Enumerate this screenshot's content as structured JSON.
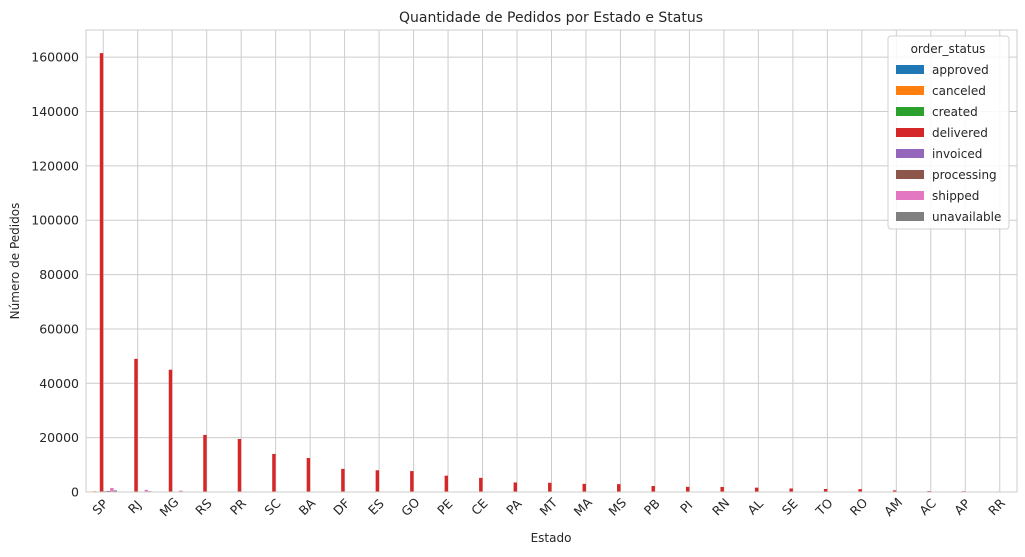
{
  "chart_data": {
    "type": "bar",
    "title": "Quantidade de Pedidos por Estado e Status",
    "xlabel": "Estado",
    "ylabel": "Número de Pedidos",
    "ylim": [
      0,
      170000
    ],
    "yticks": [
      0,
      20000,
      40000,
      60000,
      80000,
      100000,
      120000,
      140000,
      160000
    ],
    "grid": true,
    "legend_position": "top-right",
    "legend_title": "order_status",
    "categories": [
      "SP",
      "RJ",
      "MG",
      "RS",
      "PR",
      "SC",
      "BA",
      "DF",
      "ES",
      "GO",
      "PE",
      "CE",
      "PA",
      "MT",
      "MA",
      "MS",
      "PB",
      "PI",
      "RN",
      "AL",
      "SE",
      "TO",
      "RO",
      "AM",
      "AC",
      "AP",
      "RR"
    ],
    "series": [
      {
        "name": "approved",
        "color": "#1f77b4",
        "values": [
          0,
          0,
          0,
          0,
          0,
          0,
          0,
          0,
          0,
          0,
          0,
          0,
          0,
          0,
          0,
          0,
          0,
          0,
          0,
          0,
          0,
          0,
          0,
          0,
          0,
          0,
          0
        ]
      },
      {
        "name": "canceled",
        "color": "#ff7f0e",
        "values": [
          300,
          100,
          100,
          50,
          40,
          30,
          30,
          20,
          20,
          20,
          20,
          20,
          10,
          10,
          10,
          10,
          10,
          5,
          5,
          5,
          5,
          5,
          5,
          5,
          0,
          0,
          0
        ]
      },
      {
        "name": "created",
        "color": "#2ca02c",
        "values": [
          0,
          0,
          0,
          0,
          0,
          0,
          0,
          0,
          0,
          0,
          0,
          0,
          0,
          0,
          0,
          0,
          0,
          0,
          0,
          0,
          0,
          0,
          0,
          0,
          0,
          0,
          0
        ]
      },
      {
        "name": "delivered",
        "color": "#d62728",
        "values": [
          161500,
          49000,
          45000,
          21000,
          19500,
          14000,
          12500,
          8500,
          8000,
          7700,
          6000,
          5200,
          3500,
          3400,
          3000,
          2900,
          2200,
          1900,
          1850,
          1600,
          1300,
          1100,
          1050,
          600,
          350,
          300,
          200
        ]
      },
      {
        "name": "invoiced",
        "color": "#9467bd",
        "values": [
          300,
          100,
          50,
          30,
          30,
          20,
          20,
          10,
          10,
          10,
          10,
          10,
          5,
          5,
          5,
          5,
          5,
          5,
          5,
          5,
          0,
          0,
          0,
          0,
          0,
          0,
          0
        ]
      },
      {
        "name": "processing",
        "color": "#8c564b",
        "values": [
          400,
          100,
          80,
          40,
          30,
          20,
          20,
          20,
          15,
          15,
          15,
          10,
          10,
          10,
          5,
          5,
          5,
          5,
          5,
          5,
          5,
          0,
          0,
          0,
          0,
          0,
          0
        ]
      },
      {
        "name": "shipped",
        "color": "#e377c2",
        "values": [
          1500,
          800,
          500,
          200,
          150,
          100,
          100,
          80,
          70,
          80,
          70,
          60,
          50,
          40,
          40,
          30,
          30,
          30,
          20,
          20,
          20,
          10,
          10,
          10,
          5,
          5,
          5
        ]
      },
      {
        "name": "unavailable",
        "color": "#7f7f7f",
        "values": [
          600,
          300,
          200,
          70,
          60,
          40,
          40,
          30,
          20,
          20,
          20,
          20,
          10,
          10,
          10,
          10,
          10,
          5,
          5,
          5,
          5,
          5,
          5,
          5,
          0,
          0,
          0
        ]
      }
    ]
  }
}
